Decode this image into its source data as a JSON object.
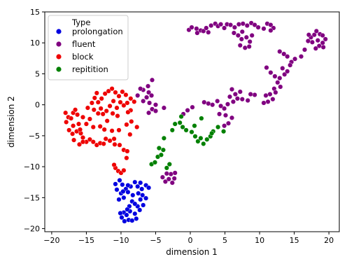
{
  "chart_data": {
    "type": "scatter",
    "xlabel": "dimension 1",
    "ylabel": "dimension 2",
    "xlim": [
      -21,
      21.5
    ],
    "ylim": [
      -20.5,
      15
    ],
    "xticks": [
      -20,
      -15,
      -10,
      -5,
      0,
      5,
      10,
      15,
      20
    ],
    "yticks": [
      -20,
      -15,
      -10,
      -5,
      0,
      5,
      10,
      15
    ],
    "grid": false,
    "legend": {
      "title": "Type",
      "placement": "top-left"
    },
    "series": [
      {
        "name": "prolongation",
        "color": "#0000e0",
        "points": [
          [
            -10.8,
            -12.8
          ],
          [
            -10.2,
            -12.2
          ],
          [
            -9.8,
            -12.9
          ],
          [
            -9.3,
            -13.6
          ],
          [
            -10.6,
            -13.7
          ],
          [
            -10.0,
            -14.3
          ],
          [
            -9.6,
            -15.0
          ],
          [
            -10.3,
            -15.3
          ],
          [
            -9.0,
            -14.1
          ],
          [
            -8.6,
            -13.2
          ],
          [
            -8.0,
            -12.5
          ],
          [
            -7.6,
            -13.2
          ],
          [
            -7.0,
            -13.6
          ],
          [
            -6.4,
            -13.0
          ],
          [
            -6.0,
            -13.4
          ],
          [
            -7.5,
            -14.3
          ],
          [
            -7.2,
            -15.3
          ],
          [
            -7.6,
            -16.4
          ],
          [
            -8.4,
            -15.6
          ],
          [
            -8.8,
            -16.4
          ],
          [
            -9.6,
            -17.4
          ],
          [
            -9.9,
            -18.2
          ],
          [
            -9.2,
            -17.8
          ],
          [
            -9.5,
            -18.8
          ],
          [
            -8.9,
            -18.6
          ],
          [
            -8.4,
            -18.7
          ],
          [
            -8.0,
            -17.6
          ],
          [
            -8.7,
            -17.2
          ],
          [
            -7.8,
            -18.4
          ],
          [
            -7.3,
            -17.0
          ],
          [
            -6.8,
            -16.2
          ],
          [
            -6.4,
            -15.1
          ],
          [
            -6.9,
            -14.6
          ],
          [
            -9.1,
            -16.9
          ],
          [
            -10.1,
            -17.5
          ],
          [
            -9.0,
            -13.0
          ],
          [
            -7.2,
            -12.6
          ],
          [
            -8.3,
            -14.6
          ],
          [
            -9.7,
            -14.0
          ],
          [
            -8.0,
            -16.0
          ]
        ]
      },
      {
        "name": "fluent",
        "color": "#800080",
        "points": [
          [
            -0.2,
            12.1
          ],
          [
            0.2,
            12.5
          ],
          [
            0.9,
            12.3
          ],
          [
            1.5,
            12.0
          ],
          [
            1.0,
            11.6
          ],
          [
            1.9,
            11.9
          ],
          [
            2.3,
            12.4
          ],
          [
            2.6,
            11.7
          ],
          [
            3.0,
            12.8
          ],
          [
            3.6,
            13.1
          ],
          [
            4.0,
            12.7
          ],
          [
            4.4,
            13.0
          ],
          [
            4.9,
            12.4
          ],
          [
            5.3,
            13.0
          ],
          [
            5.8,
            12.9
          ],
          [
            6.4,
            12.5
          ],
          [
            7.0,
            13.0
          ],
          [
            7.6,
            13.1
          ],
          [
            8.2,
            12.8
          ],
          [
            8.8,
            13.2
          ],
          [
            9.3,
            12.9
          ],
          [
            9.8,
            12.5
          ],
          [
            6.3,
            11.6
          ],
          [
            6.9,
            11.2
          ],
          [
            7.5,
            11.8
          ],
          [
            7.4,
            10.6
          ],
          [
            8.1,
            10.9
          ],
          [
            8.6,
            10.2
          ],
          [
            8.9,
            11.2
          ],
          [
            7.2,
            9.6
          ],
          [
            7.9,
            9.2
          ],
          [
            8.5,
            9.4
          ],
          [
            10.6,
            12.3
          ],
          [
            11.1,
            13.1
          ],
          [
            11.6,
            12.9
          ],
          [
            12.0,
            12.4
          ],
          [
            11.6,
            12.0
          ],
          [
            12.9,
            8.6
          ],
          [
            13.5,
            8.2
          ],
          [
            14.0,
            7.8
          ],
          [
            14.6,
            6.9
          ],
          [
            15.1,
            7.4
          ],
          [
            16.0,
            7.8
          ],
          [
            16.5,
            8.9
          ],
          [
            17.0,
            10.3
          ],
          [
            17.4,
            10.9
          ],
          [
            17.9,
            11.3
          ],
          [
            18.2,
            11.9
          ],
          [
            18.7,
            11.4
          ],
          [
            19.1,
            11.2
          ],
          [
            19.5,
            10.6
          ],
          [
            19.1,
            10.0
          ],
          [
            18.6,
            9.5
          ],
          [
            18.1,
            9.1
          ],
          [
            17.6,
            10.1
          ],
          [
            18.4,
            10.4
          ],
          [
            19.2,
            9.3
          ],
          [
            17.1,
            11.3
          ],
          [
            11.0,
            6.0
          ],
          [
            11.6,
            5.2
          ],
          [
            12.2,
            4.6
          ],
          [
            12.9,
            4.3
          ],
          [
            13.6,
            4.9
          ],
          [
            14.0,
            5.4
          ],
          [
            14.4,
            6.4
          ],
          [
            13.3,
            5.9
          ],
          [
            12.6,
            3.6
          ],
          [
            12.1,
            2.6
          ],
          [
            11.5,
            1.7
          ],
          [
            11.9,
            0.9
          ],
          [
            11.2,
            0.5
          ],
          [
            10.6,
            0.3
          ],
          [
            10.9,
            1.5
          ],
          [
            12.3,
            2.0
          ],
          [
            13.0,
            2.9
          ],
          [
            9.3,
            1.6
          ],
          [
            8.7,
            1.7
          ],
          [
            8.3,
            0.7
          ],
          [
            7.5,
            0.9
          ],
          [
            7.2,
            2.1
          ],
          [
            6.8,
            1.0
          ],
          [
            6.5,
            1.7
          ],
          [
            6.0,
            2.5
          ],
          [
            5.7,
            1.3
          ],
          [
            6.2,
            0.5
          ],
          [
            5.4,
            0.1
          ],
          [
            4.9,
            -0.6
          ],
          [
            4.4,
            -0.2
          ],
          [
            3.9,
            0.6
          ],
          [
            3.2,
            0.0
          ],
          [
            2.6,
            0.2
          ],
          [
            2.0,
            0.4
          ],
          [
            0.3,
            -0.4
          ],
          [
            -0.4,
            -0.9
          ],
          [
            -1.0,
            -1.5
          ],
          [
            4.2,
            -1.5
          ],
          [
            5.1,
            -1.7
          ],
          [
            6.0,
            -2.1
          ],
          [
            5.5,
            -3.0
          ],
          [
            4.9,
            -3.4
          ],
          [
            -6.1,
            3.0
          ],
          [
            -6.8,
            2.4
          ],
          [
            -6.0,
            2.0
          ],
          [
            -5.6,
            1.5
          ],
          [
            -6.3,
            1.2
          ],
          [
            -6.8,
            0.6
          ],
          [
            -5.9,
            0.3
          ],
          [
            -5.0,
            0.0
          ],
          [
            -5.5,
            -0.7
          ],
          [
            -6.0,
            -1.3
          ],
          [
            -5.0,
            -1.0
          ],
          [
            -3.8,
            -0.5
          ],
          [
            -7.6,
            1.5
          ],
          [
            -7.2,
            2.6
          ],
          [
            -5.5,
            4.0
          ],
          [
            -3.6,
            -12.4
          ],
          [
            -3.1,
            -12.0
          ],
          [
            -2.6,
            -12.6
          ],
          [
            -2.3,
            -11.9
          ],
          [
            -2.8,
            -11.2
          ],
          [
            -4.0,
            -11.7
          ],
          [
            -2.2,
            -11.0
          ],
          [
            -3.4,
            -11.1
          ]
        ]
      },
      {
        "name": "block",
        "color": "#ee0000",
        "points": [
          [
            -18.0,
            -1.3
          ],
          [
            -17.6,
            -2.0
          ],
          [
            -17.2,
            -2.2
          ],
          [
            -16.9,
            -1.3
          ],
          [
            -16.3,
            -1.6
          ],
          [
            -16.9,
            -3.4
          ],
          [
            -16.1,
            -3.1
          ],
          [
            -17.5,
            -4.1
          ],
          [
            -17.0,
            -4.7
          ],
          [
            -16.4,
            -4.3
          ],
          [
            -15.8,
            -4.6
          ],
          [
            -15.5,
            -5.3
          ],
          [
            -15.0,
            -6.0
          ],
          [
            -14.5,
            -5.6
          ],
          [
            -14.0,
            -6.0
          ],
          [
            -16.8,
            -5.7
          ],
          [
            -16.0,
            -6.4
          ],
          [
            -15.5,
            -6.0
          ],
          [
            -13.5,
            -6.5
          ],
          [
            -13.0,
            -6.2
          ],
          [
            -12.5,
            -6.3
          ],
          [
            -12.2,
            -5.5
          ],
          [
            -11.6,
            -5.8
          ],
          [
            -11.0,
            -5.5
          ],
          [
            -10.9,
            -6.4
          ],
          [
            -10.2,
            -6.5
          ],
          [
            -9.6,
            -7.3
          ],
          [
            -9.1,
            -7.5
          ],
          [
            -9.2,
            -8.6
          ],
          [
            -10.8,
            -10.2
          ],
          [
            -10.4,
            -10.7
          ],
          [
            -10.0,
            -11.0
          ],
          [
            -9.6,
            -10.6
          ],
          [
            -11.0,
            -9.7
          ],
          [
            -13.3,
            -1.4
          ],
          [
            -12.9,
            -0.6
          ],
          [
            -12.6,
            -1.5
          ],
          [
            -12.1,
            -1.0
          ],
          [
            -11.6,
            -0.2
          ],
          [
            -11.1,
            0.6
          ],
          [
            -10.6,
            -0.5
          ],
          [
            -10.1,
            0.4
          ],
          [
            -9.6,
            -0.1
          ],
          [
            -9.1,
            0.3
          ],
          [
            -8.6,
            1.0
          ],
          [
            -8.1,
            0.5
          ],
          [
            -8.6,
            -0.9
          ],
          [
            -12.8,
            1.0
          ],
          [
            -12.3,
            1.8
          ],
          [
            -11.8,
            2.2
          ],
          [
            -11.3,
            2.6
          ],
          [
            -10.8,
            2.0
          ],
          [
            -10.3,
            1.4
          ],
          [
            -9.8,
            2.1
          ],
          [
            -9.3,
            1.6
          ],
          [
            -13.3,
            0.4
          ],
          [
            -13.8,
            1.1
          ],
          [
            -14.2,
            0.3
          ],
          [
            -13.9,
            -0.8
          ],
          [
            -14.5,
            -2.3
          ],
          [
            -15.0,
            -3.1
          ],
          [
            -14.0,
            -3.6
          ],
          [
            -13.0,
            -3.5
          ],
          [
            -12.4,
            -4.0
          ],
          [
            -11.3,
            -4.2
          ],
          [
            -10.3,
            -4.1
          ],
          [
            -9.2,
            -3.2
          ],
          [
            -8.5,
            -2.7
          ],
          [
            -9.0,
            -1.2
          ],
          [
            -10.5,
            -1.8
          ],
          [
            -11.2,
            -1.4
          ],
          [
            -12.0,
            -2.6
          ],
          [
            -7.7,
            -3.6
          ],
          [
            -8.7,
            -4.8
          ],
          [
            -14.8,
            -0.5
          ],
          [
            -16.6,
            -0.8
          ],
          [
            -17.9,
            -2.8
          ],
          [
            -13.5,
            1.9
          ],
          [
            -15.5,
            -2.0
          ],
          [
            -15.9,
            -4.0
          ]
        ]
      },
      {
        "name": "repitition",
        "color": "#008000",
        "points": [
          [
            -5.6,
            -9.6
          ],
          [
            -5.1,
            -9.3
          ],
          [
            -4.7,
            -8.4
          ],
          [
            -4.2,
            -8.1
          ],
          [
            -4.5,
            -7.0
          ],
          [
            -3.9,
            -7.3
          ],
          [
            -3.4,
            -10.2
          ],
          [
            -3.0,
            -9.6
          ],
          [
            -3.8,
            -5.4
          ],
          [
            -2.6,
            -4.1
          ],
          [
            -2.2,
            -3.1
          ],
          [
            -1.5,
            -2.9
          ],
          [
            -1.3,
            -1.9
          ],
          [
            -1.1,
            -3.6
          ],
          [
            -0.6,
            -4.1
          ],
          [
            0.2,
            -4.4
          ],
          [
            0.7,
            -5.1
          ],
          [
            1.1,
            -5.9
          ],
          [
            1.5,
            -5.4
          ],
          [
            1.9,
            -6.3
          ],
          [
            2.4,
            -5.6
          ],
          [
            2.9,
            -5.1
          ],
          [
            3.3,
            -4.3
          ],
          [
            4.0,
            -3.6
          ],
          [
            4.8,
            -4.3
          ],
          [
            1.6,
            -2.2
          ],
          [
            0.6,
            -3.4
          ],
          [
            3.1,
            -4.6
          ]
        ]
      }
    ]
  }
}
